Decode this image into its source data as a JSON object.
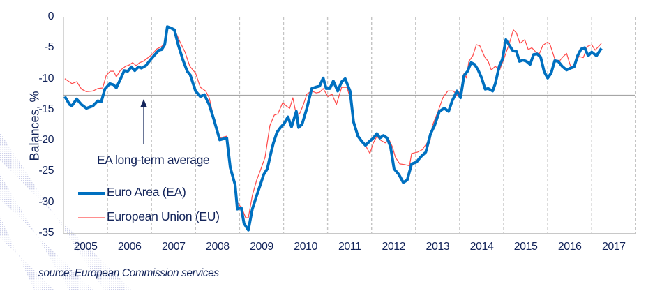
{
  "chart_data": {
    "type": "line",
    "title": "",
    "xlabel": "",
    "ylabel": "Balances, %",
    "ylim": [
      -35,
      0
    ],
    "xlim": [
      2005,
      2018
    ],
    "yticks": [
      0,
      -5,
      -10,
      -15,
      -20,
      -25,
      -30,
      -35
    ],
    "ytick_labels": [
      "0",
      "-5",
      "-10",
      "-15",
      "-20",
      "-25",
      "-30",
      "-35"
    ],
    "xtick_labels": [
      "2005",
      "2006",
      "2007",
      "2008",
      "2009",
      "2010",
      "2011",
      "2012",
      "2013",
      "2014",
      "2015",
      "2016",
      "2017"
    ],
    "grid": "vertical dashed at year boundaries",
    "legend_placement": "bottom-left",
    "reference_line": {
      "label": "EA long-term average",
      "value": -12.6
    },
    "series": [
      {
        "name": "Euro Area (EA)",
        "color": "#0070c0",
        "points": [
          [
            2005.03,
            -12.8
          ],
          [
            2005.14,
            -14.1
          ],
          [
            2005.19,
            -14.3
          ],
          [
            2005.3,
            -13.2
          ],
          [
            2005.41,
            -14.1
          ],
          [
            2005.52,
            -14.7
          ],
          [
            2005.67,
            -14.3
          ],
          [
            2005.78,
            -13.5
          ],
          [
            2005.86,
            -13.6
          ],
          [
            2005.94,
            -11.6
          ],
          [
            2006.05,
            -10.7
          ],
          [
            2006.14,
            -10.9
          ],
          [
            2006.2,
            -11.4
          ],
          [
            2006.3,
            -9.9
          ],
          [
            2006.38,
            -8.6
          ],
          [
            2006.46,
            -8.7
          ],
          [
            2006.54,
            -8.0
          ],
          [
            2006.62,
            -8.6
          ],
          [
            2006.7,
            -8.0
          ],
          [
            2006.77,
            -8.2
          ],
          [
            2006.87,
            -7.8
          ],
          [
            2006.97,
            -6.9
          ],
          [
            2007.08,
            -6.0
          ],
          [
            2007.17,
            -5.3
          ],
          [
            2007.23,
            -5.2
          ],
          [
            2007.3,
            -4.4
          ],
          [
            2007.36,
            -1.5
          ],
          [
            2007.44,
            -1.7
          ],
          [
            2007.52,
            -2.0
          ],
          [
            2007.61,
            -4.5
          ],
          [
            2007.71,
            -6.8
          ],
          [
            2007.81,
            -8.7
          ],
          [
            2007.88,
            -9.3
          ],
          [
            2008.0,
            -11.9
          ],
          [
            2008.11,
            -12.8
          ],
          [
            2008.2,
            -12.5
          ],
          [
            2008.31,
            -14.1
          ],
          [
            2008.42,
            -16.6
          ],
          [
            2008.55,
            -19.8
          ],
          [
            2008.71,
            -19.5
          ],
          [
            2008.79,
            -24.3
          ],
          [
            2008.9,
            -27.1
          ],
          [
            2008.95,
            -31.0
          ],
          [
            2009.04,
            -30.8
          ],
          [
            2009.1,
            -33.3
          ],
          [
            2009.2,
            -34.4
          ],
          [
            2009.29,
            -31.0
          ],
          [
            2009.39,
            -28.8
          ],
          [
            2009.47,
            -27.1
          ],
          [
            2009.55,
            -25.4
          ],
          [
            2009.63,
            -24.5
          ],
          [
            2009.71,
            -22.0
          ],
          [
            2009.77,
            -20.3
          ],
          [
            2009.85,
            -18.6
          ],
          [
            2009.93,
            -17.8
          ],
          [
            2010.01,
            -17.2
          ],
          [
            2010.1,
            -16.1
          ],
          [
            2010.18,
            -17.7
          ],
          [
            2010.29,
            -15.2
          ],
          [
            2010.34,
            -17.8
          ],
          [
            2010.42,
            -17.3
          ],
          [
            2010.53,
            -14.7
          ],
          [
            2010.64,
            -11.5
          ],
          [
            2010.72,
            -11.3
          ],
          [
            2010.82,
            -11.1
          ],
          [
            2010.9,
            -9.8
          ],
          [
            2010.97,
            -11.5
          ],
          [
            2011.05,
            -11.5
          ],
          [
            2011.13,
            -10.3
          ],
          [
            2011.23,
            -11.9
          ],
          [
            2011.32,
            -10.4
          ],
          [
            2011.4,
            -9.9
          ],
          [
            2011.51,
            -11.9
          ],
          [
            2011.59,
            -16.9
          ],
          [
            2011.69,
            -19.2
          ],
          [
            2011.77,
            -20.0
          ],
          [
            2011.86,
            -20.7
          ],
          [
            2011.96,
            -20.0
          ],
          [
            2012.04,
            -19.5
          ],
          [
            2012.12,
            -18.8
          ],
          [
            2012.19,
            -19.5
          ],
          [
            2012.27,
            -19.1
          ],
          [
            2012.35,
            -19.5
          ],
          [
            2012.43,
            -20.9
          ],
          [
            2012.51,
            -24.5
          ],
          [
            2012.62,
            -25.4
          ],
          [
            2012.72,
            -26.7
          ],
          [
            2012.81,
            -26.3
          ],
          [
            2012.91,
            -23.7
          ],
          [
            2013.02,
            -23.4
          ],
          [
            2013.11,
            -22.6
          ],
          [
            2013.23,
            -21.8
          ],
          [
            2013.34,
            -18.8
          ],
          [
            2013.43,
            -17.5
          ],
          [
            2013.54,
            -15.2
          ],
          [
            2013.65,
            -14.7
          ],
          [
            2013.75,
            -15.2
          ],
          [
            2013.83,
            -13.5
          ],
          [
            2013.94,
            -11.9
          ],
          [
            2014.02,
            -13.0
          ],
          [
            2014.1,
            -9.4
          ],
          [
            2014.18,
            -8.7
          ],
          [
            2014.26,
            -7.3
          ],
          [
            2014.34,
            -7.6
          ],
          [
            2014.42,
            -8.5
          ],
          [
            2014.5,
            -9.8
          ],
          [
            2014.58,
            -11.6
          ],
          [
            2014.65,
            -11.5
          ],
          [
            2014.75,
            -11.9
          ],
          [
            2014.81,
            -10.7
          ],
          [
            2014.9,
            -7.9
          ],
          [
            2014.97,
            -6.8
          ],
          [
            2015.05,
            -3.6
          ],
          [
            2015.13,
            -4.5
          ],
          [
            2015.21,
            -5.4
          ],
          [
            2015.29,
            -5.5
          ],
          [
            2015.36,
            -7.1
          ],
          [
            2015.44,
            -6.9
          ],
          [
            2015.52,
            -7.1
          ],
          [
            2015.6,
            -7.6
          ],
          [
            2015.68,
            -6.0
          ],
          [
            2015.76,
            -5.9
          ],
          [
            2015.84,
            -6.4
          ],
          [
            2015.92,
            -8.8
          ],
          [
            2016.0,
            -9.8
          ],
          [
            2016.08,
            -9.0
          ],
          [
            2016.16,
            -7.0
          ],
          [
            2016.24,
            -7.1
          ],
          [
            2016.33,
            -7.9
          ],
          [
            2016.43,
            -8.5
          ],
          [
            2016.52,
            -8.2
          ],
          [
            2016.6,
            -8.0
          ],
          [
            2016.68,
            -6.2
          ],
          [
            2016.76,
            -5.1
          ],
          [
            2016.84,
            -4.9
          ],
          [
            2016.92,
            -6.2
          ],
          [
            2017.0,
            -5.6
          ],
          [
            2017.11,
            -6.2
          ],
          [
            2017.22,
            -5.0
          ]
        ]
      },
      {
        "name": "European Union (EU)",
        "color": "#ff4a4a",
        "points": [
          [
            2005.03,
            -9.9
          ],
          [
            2005.19,
            -10.7
          ],
          [
            2005.3,
            -10.4
          ],
          [
            2005.41,
            -11.6
          ],
          [
            2005.52,
            -12.0
          ],
          [
            2005.67,
            -11.9
          ],
          [
            2005.78,
            -11.5
          ],
          [
            2005.89,
            -11.4
          ],
          [
            2005.97,
            -9.4
          ],
          [
            2006.06,
            -8.7
          ],
          [
            2006.14,
            -8.7
          ],
          [
            2006.2,
            -9.6
          ],
          [
            2006.3,
            -8.5
          ],
          [
            2006.41,
            -7.9
          ],
          [
            2006.49,
            -7.7
          ],
          [
            2006.57,
            -7.3
          ],
          [
            2006.65,
            -7.8
          ],
          [
            2006.73,
            -7.3
          ],
          [
            2006.81,
            -7.1
          ],
          [
            2006.92,
            -6.5
          ],
          [
            2007.01,
            -6.0
          ],
          [
            2007.12,
            -5.1
          ],
          [
            2007.23,
            -4.7
          ],
          [
            2007.3,
            -4.2
          ],
          [
            2007.36,
            -1.5
          ],
          [
            2007.52,
            -1.9
          ],
          [
            2007.65,
            -4.0
          ],
          [
            2007.76,
            -5.6
          ],
          [
            2007.87,
            -7.9
          ],
          [
            2008.0,
            -9.0
          ],
          [
            2008.11,
            -11.3
          ],
          [
            2008.23,
            -11.9
          ],
          [
            2008.31,
            -13.0
          ],
          [
            2008.42,
            -16.4
          ],
          [
            2008.55,
            -19.5
          ],
          [
            2008.71,
            -19.2
          ],
          [
            2008.79,
            -24.0
          ],
          [
            2008.9,
            -26.7
          ],
          [
            2008.95,
            -29.9
          ],
          [
            2009.06,
            -31.0
          ],
          [
            2009.14,
            -32.4
          ],
          [
            2009.2,
            -32.4
          ],
          [
            2009.29,
            -28.8
          ],
          [
            2009.39,
            -26.3
          ],
          [
            2009.47,
            -24.8
          ],
          [
            2009.58,
            -22.6
          ],
          [
            2009.69,
            -17.5
          ],
          [
            2009.79,
            -15.8
          ],
          [
            2009.87,
            -15.6
          ],
          [
            2009.98,
            -13.8
          ],
          [
            2010.06,
            -14.3
          ],
          [
            2010.14,
            -14.7
          ],
          [
            2010.21,
            -13.0
          ],
          [
            2010.29,
            -15.8
          ],
          [
            2010.37,
            -15.5
          ],
          [
            2010.45,
            -14.1
          ],
          [
            2010.53,
            -12.4
          ],
          [
            2010.64,
            -11.9
          ],
          [
            2010.74,
            -12.2
          ],
          [
            2010.82,
            -12.1
          ],
          [
            2010.9,
            -11.5
          ],
          [
            2011.01,
            -12.8
          ],
          [
            2011.1,
            -12.4
          ],
          [
            2011.2,
            -14.1
          ],
          [
            2011.32,
            -11.3
          ],
          [
            2011.44,
            -11.3
          ],
          [
            2011.51,
            -13.0
          ],
          [
            2011.61,
            -16.9
          ],
          [
            2011.72,
            -19.5
          ],
          [
            2011.8,
            -20.3
          ],
          [
            2011.86,
            -20.7
          ],
          [
            2011.96,
            -22.0
          ],
          [
            2012.04,
            -20.3
          ],
          [
            2012.12,
            -19.2
          ],
          [
            2012.19,
            -19.8
          ],
          [
            2012.31,
            -20.3
          ],
          [
            2012.4,
            -19.8
          ],
          [
            2012.47,
            -20.9
          ],
          [
            2012.54,
            -22.6
          ],
          [
            2012.64,
            -23.7
          ],
          [
            2012.75,
            -23.8
          ],
          [
            2012.86,
            -24.0
          ],
          [
            2012.91,
            -22.0
          ],
          [
            2013.04,
            -21.8
          ],
          [
            2013.15,
            -21.4
          ],
          [
            2013.26,
            -20.3
          ],
          [
            2013.32,
            -20.3
          ],
          [
            2013.38,
            -17.5
          ],
          [
            2013.51,
            -15.2
          ],
          [
            2013.62,
            -13.0
          ],
          [
            2013.73,
            -11.9
          ],
          [
            2013.86,
            -11.9
          ],
          [
            2013.94,
            -12.6
          ],
          [
            2014.02,
            -11.9
          ],
          [
            2014.1,
            -9.0
          ],
          [
            2014.15,
            -9.8
          ],
          [
            2014.21,
            -7.1
          ],
          [
            2014.3,
            -6.2
          ],
          [
            2014.38,
            -4.4
          ],
          [
            2014.46,
            -4.6
          ],
          [
            2014.57,
            -6.4
          ],
          [
            2014.65,
            -7.1
          ],
          [
            2014.72,
            -8.5
          ],
          [
            2014.81,
            -7.9
          ],
          [
            2014.91,
            -8.5
          ],
          [
            2015.0,
            -6.8
          ],
          [
            2015.13,
            -4.2
          ],
          [
            2015.22,
            -2.0
          ],
          [
            2015.29,
            -2.5
          ],
          [
            2015.37,
            -4.2
          ],
          [
            2015.48,
            -3.6
          ],
          [
            2015.56,
            -5.2
          ],
          [
            2015.64,
            -4.9
          ],
          [
            2015.73,
            -5.6
          ],
          [
            2015.81,
            -5.9
          ],
          [
            2015.89,
            -4.5
          ],
          [
            2016.0,
            -4.0
          ],
          [
            2016.05,
            -4.3
          ],
          [
            2016.16,
            -6.7
          ],
          [
            2016.24,
            -7.3
          ],
          [
            2016.33,
            -6.5
          ],
          [
            2016.43,
            -5.8
          ],
          [
            2016.52,
            -7.9
          ],
          [
            2016.6,
            -7.8
          ],
          [
            2016.71,
            -6.3
          ],
          [
            2016.81,
            -6.5
          ],
          [
            2016.9,
            -4.7
          ],
          [
            2017.0,
            -4.4
          ],
          [
            2017.08,
            -5.3
          ],
          [
            2017.22,
            -4.2
          ]
        ]
      }
    ],
    "source": "source: European Commission services"
  }
}
